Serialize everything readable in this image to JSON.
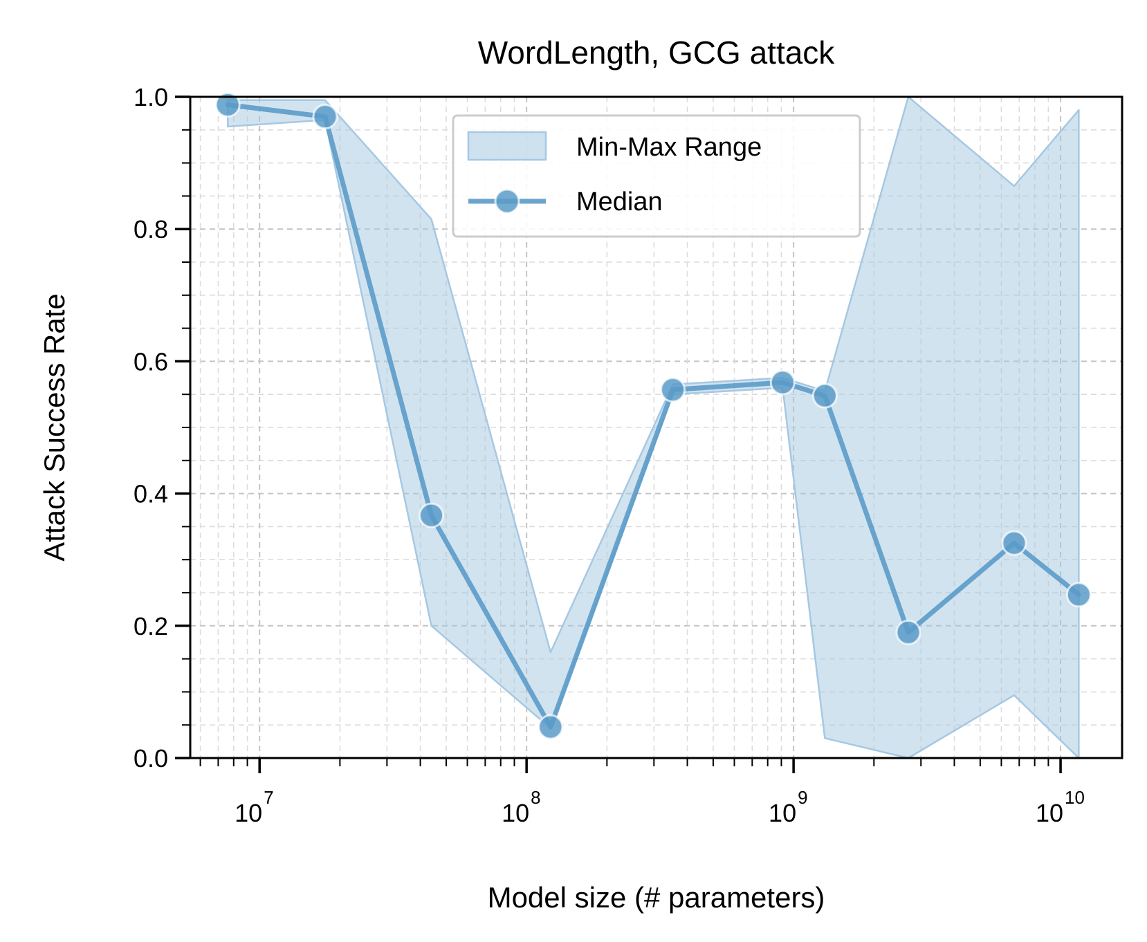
{
  "chart_data": {
    "type": "line",
    "title": "WordLength, GCG attack",
    "xlabel": "Model size (# parameters)",
    "ylabel": "Attack Success Rate",
    "xscale": "log",
    "xlim": [
      5500000,
      17000000000
    ],
    "ylim": [
      0,
      1
    ],
    "grid": true,
    "legend_position": "top-center",
    "x_ticks": [
      {
        "value": 10000000,
        "base": "10",
        "exp": "7"
      },
      {
        "value": 100000000,
        "base": "10",
        "exp": "8"
      },
      {
        "value": 1000000000,
        "base": "10",
        "exp": "9"
      },
      {
        "value": 10000000000,
        "base": "10",
        "exp": "10"
      }
    ],
    "y_ticks": [
      {
        "value": 0.0,
        "label": "0.0"
      },
      {
        "value": 0.2,
        "label": "0.2"
      },
      {
        "value": 0.4,
        "label": "0.4"
      },
      {
        "value": 0.6,
        "label": "0.6"
      },
      {
        "value": 0.8,
        "label": "0.8"
      },
      {
        "value": 1.0,
        "label": "1.0"
      }
    ],
    "color": "#5b9bc8",
    "fill_color": "#a6c8e2",
    "series": [
      {
        "name": "Min-Max Range",
        "kind": "band",
        "x": [
          7600000,
          17600000,
          44000000,
          123000000,
          353000000,
          910000000,
          1310000000,
          2690000000,
          6700000000,
          11700000000
        ],
        "min": [
          0.955,
          0.965,
          0.2,
          0.045,
          0.55,
          0.56,
          0.03,
          0.0,
          0.095,
          0.0
        ],
        "max": [
          0.995,
          0.995,
          0.815,
          0.16,
          0.565,
          0.575,
          0.555,
          1.0,
          0.865,
          0.98
        ]
      },
      {
        "name": "Median",
        "kind": "line",
        "x": [
          7600000,
          17600000,
          44000000,
          123000000,
          353000000,
          910000000,
          1310000000,
          2690000000,
          6700000000,
          11700000000
        ],
        "values": [
          0.988,
          0.97,
          0.367,
          0.047,
          0.557,
          0.568,
          0.548,
          0.19,
          0.325,
          0.247
        ]
      }
    ]
  }
}
